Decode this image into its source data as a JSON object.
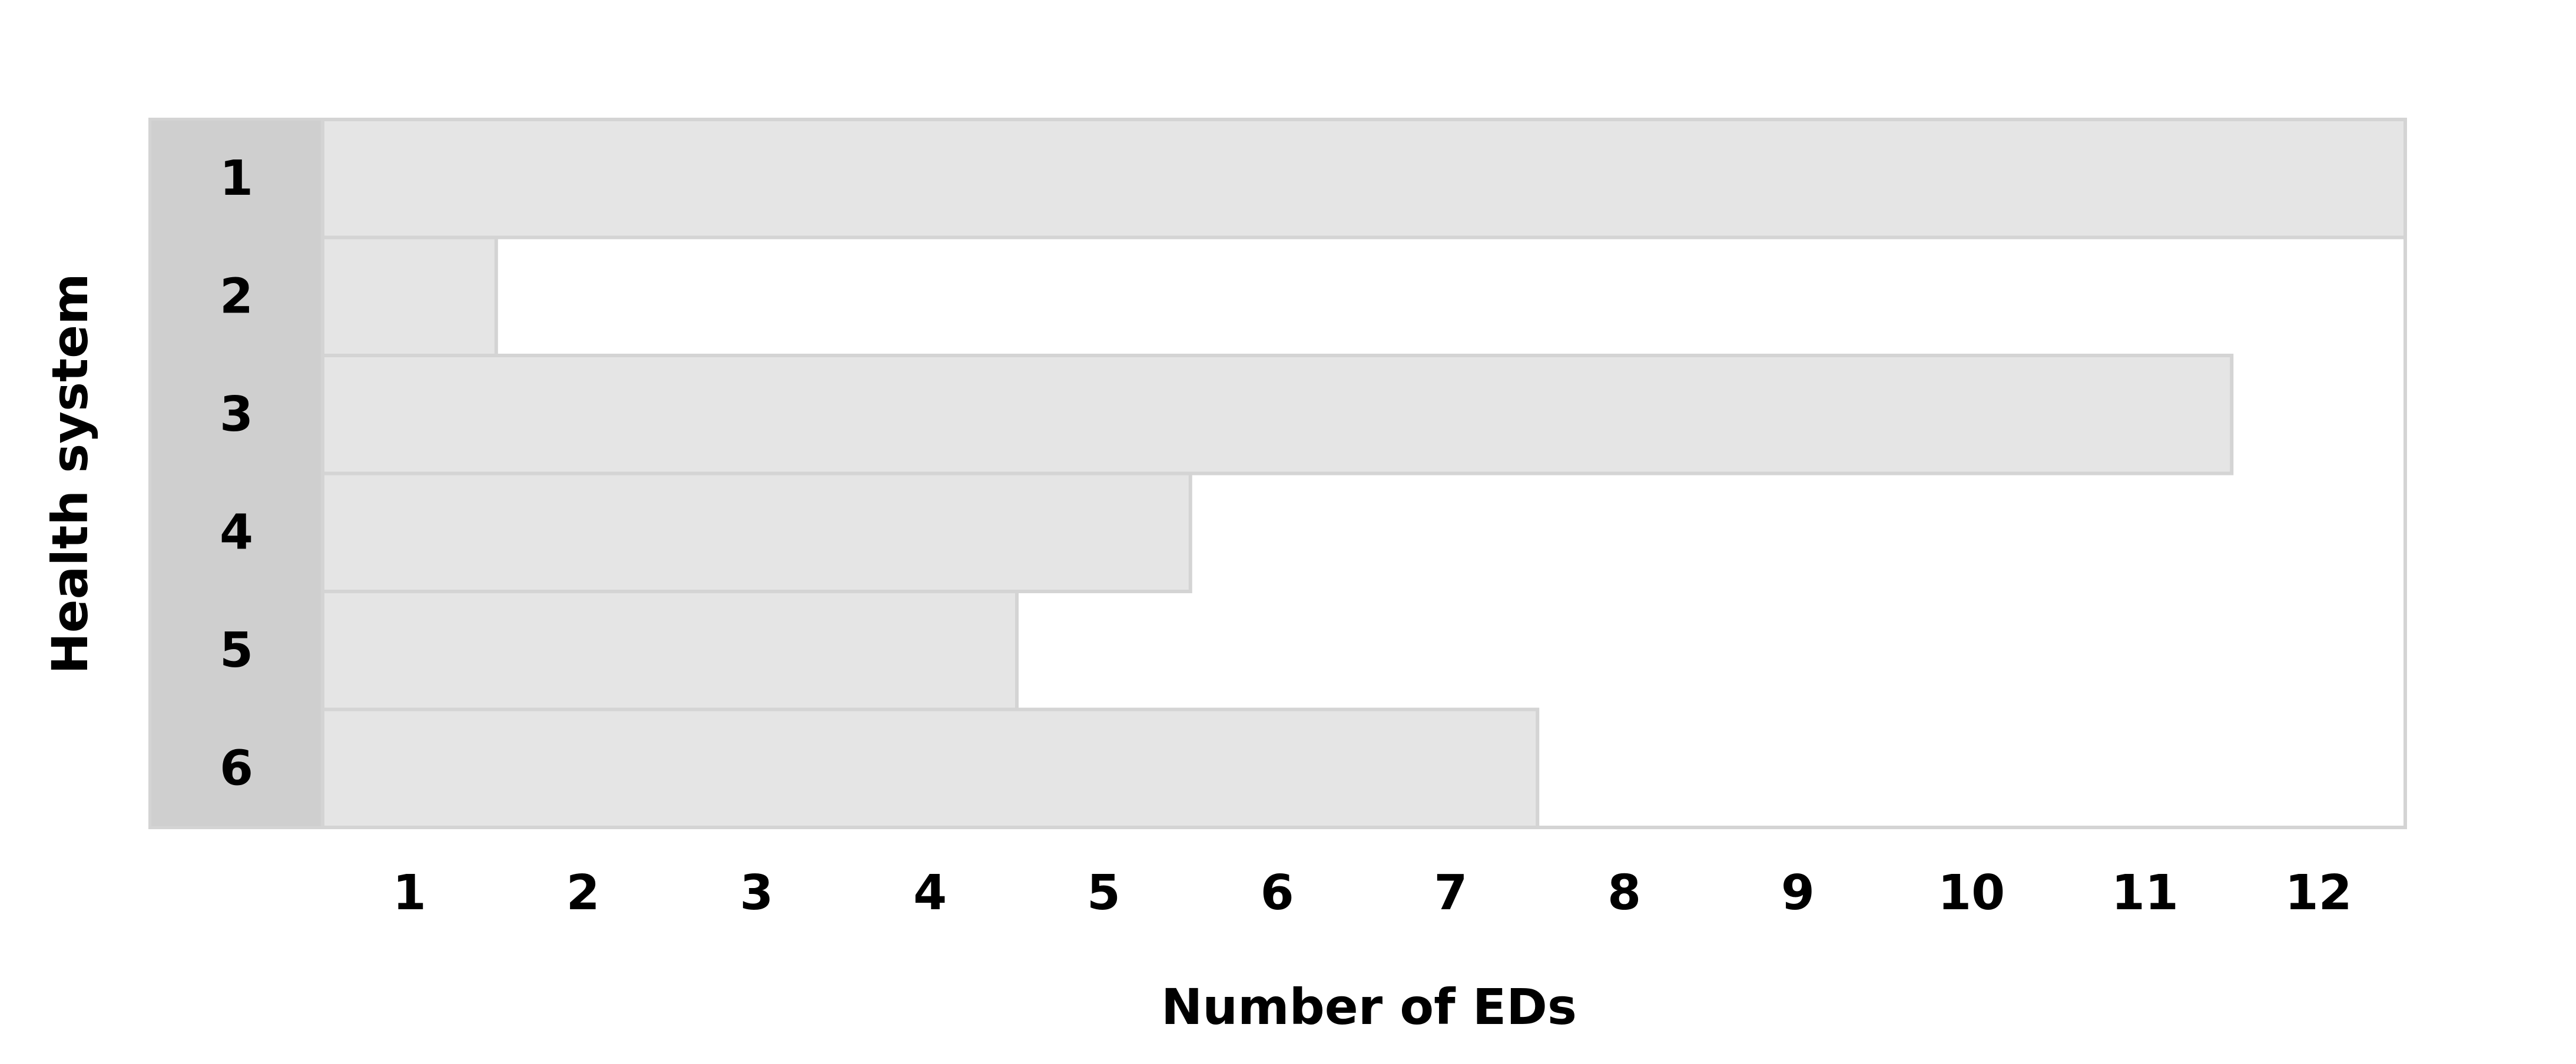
{
  "chart_data": {
    "type": "bar",
    "orientation": "horizontal",
    "title": "",
    "xlabel": "Number of EDs",
    "ylabel": "Health system",
    "categories": [
      "1",
      "2",
      "3",
      "4",
      "5",
      "6"
    ],
    "values": [
      12,
      1,
      11,
      5,
      4,
      7
    ],
    "xlim": [
      0,
      12
    ],
    "x_ticks": [
      "1",
      "2",
      "3",
      "4",
      "5",
      "6",
      "7",
      "8",
      "9",
      "10",
      "11",
      "12"
    ],
    "grid": false,
    "legend": "none",
    "colors": {
      "bar_fill": "#e5e5e5",
      "bar_stroke": "#d4d4d4",
      "category_band": "#cfcfcf",
      "frame": "#d4d4d4",
      "text": "#000000"
    }
  }
}
